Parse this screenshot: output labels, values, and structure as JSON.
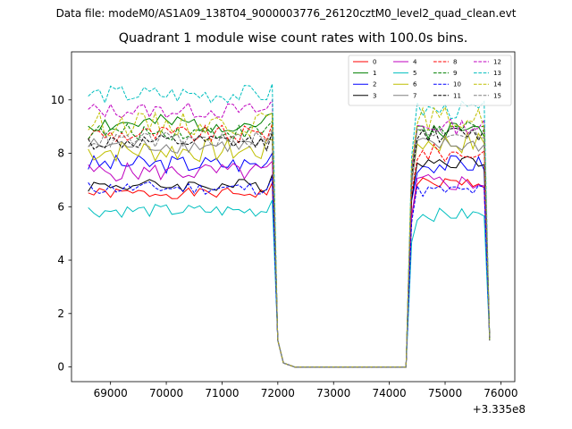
{
  "header": {
    "suptitle": "Data file: modeM0/AS1A09_138T04_9000003776_26120cztM0_level2_quad_clean.evt"
  },
  "chart_data": {
    "type": "line",
    "title": "Quadrant 1 module wise count rates with 100.0s bins.",
    "xlabel": "",
    "ylabel": "",
    "x_offset_label": "+3.335e8",
    "x_ticks": [
      69000,
      70000,
      71000,
      72000,
      73000,
      74000,
      75000,
      76000
    ],
    "y_ticks": [
      0,
      2,
      4,
      6,
      8,
      10
    ],
    "xlim": [
      68300,
      76250
    ],
    "ylim": [
      -0.55,
      11.8
    ],
    "legend_position": "top-right",
    "segments": [
      {
        "start": 68600,
        "step": 100,
        "count": 36
      },
      {
        "start": 72300,
        "step": 100,
        "count": 21
      },
      {
        "start": 74400,
        "step": 100,
        "count": 15
      }
    ],
    "series": [
      {
        "name": "0",
        "color": "#ff0000",
        "dash": "solid",
        "level1": 6.5,
        "level2": 6.9,
        "amp": 0.2,
        "seed": 1
      },
      {
        "name": "1",
        "color": "#008000",
        "dash": "solid",
        "level1": 9.1,
        "level2": 8.9,
        "amp": 0.35,
        "seed": 2
      },
      {
        "name": "2",
        "color": "#0000ff",
        "dash": "solid",
        "level1": 7.6,
        "level2": 7.6,
        "amp": 0.35,
        "seed": 3
      },
      {
        "name": "3",
        "color": "#000000",
        "dash": "solid",
        "level1": 6.8,
        "level2": 7.7,
        "amp": 0.25,
        "seed": 4
      },
      {
        "name": "4",
        "color": "#bf00bf",
        "dash": "solid",
        "level1": 7.3,
        "level2": 6.9,
        "amp": 0.35,
        "seed": 5
      },
      {
        "name": "5",
        "color": "#00bfbf",
        "dash": "solid",
        "level1": 5.85,
        "level2": 5.7,
        "amp": 0.25,
        "seed": 6
      },
      {
        "name": "6",
        "color": "#bfbf00",
        "dash": "solid",
        "level1": 8.1,
        "level2": 8.4,
        "amp": 0.45,
        "seed": 7
      },
      {
        "name": "7",
        "color": "#808080",
        "dash": "solid",
        "level1": 8.3,
        "level2": 8.3,
        "amp": 0.3,
        "seed": 8
      },
      {
        "name": "8",
        "color": "#ff0000",
        "dash": "dashed",
        "level1": 8.7,
        "level2": 8.0,
        "amp": 0.35,
        "seed": 9
      },
      {
        "name": "9",
        "color": "#008000",
        "dash": "dashed",
        "level1": 8.8,
        "level2": 8.9,
        "amp": 0.3,
        "seed": 10
      },
      {
        "name": "10",
        "color": "#0000ff",
        "dash": "dashed",
        "level1": 6.7,
        "level2": 6.6,
        "amp": 0.25,
        "seed": 11
      },
      {
        "name": "11",
        "color": "#000000",
        "dash": "dashed",
        "level1": 8.4,
        "level2": 8.7,
        "amp": 0.3,
        "seed": 12
      },
      {
        "name": "12",
        "color": "#bf00bf",
        "dash": "dashed",
        "level1": 9.6,
        "level2": 9.0,
        "amp": 0.3,
        "seed": 13
      },
      {
        "name": "13",
        "color": "#00bfbf",
        "dash": "dashed",
        "level1": 10.2,
        "level2": 9.6,
        "amp": 0.35,
        "seed": 14
      },
      {
        "name": "14",
        "color": "#bfbf00",
        "dash": "dashed",
        "level1": 9.1,
        "level2": 9.3,
        "amp": 0.45,
        "seed": 15
      },
      {
        "name": "15",
        "color": "#808080",
        "dash": "dashed",
        "level1": 8.5,
        "level2": 8.8,
        "amp": 0.3,
        "seed": 16
      }
    ]
  }
}
